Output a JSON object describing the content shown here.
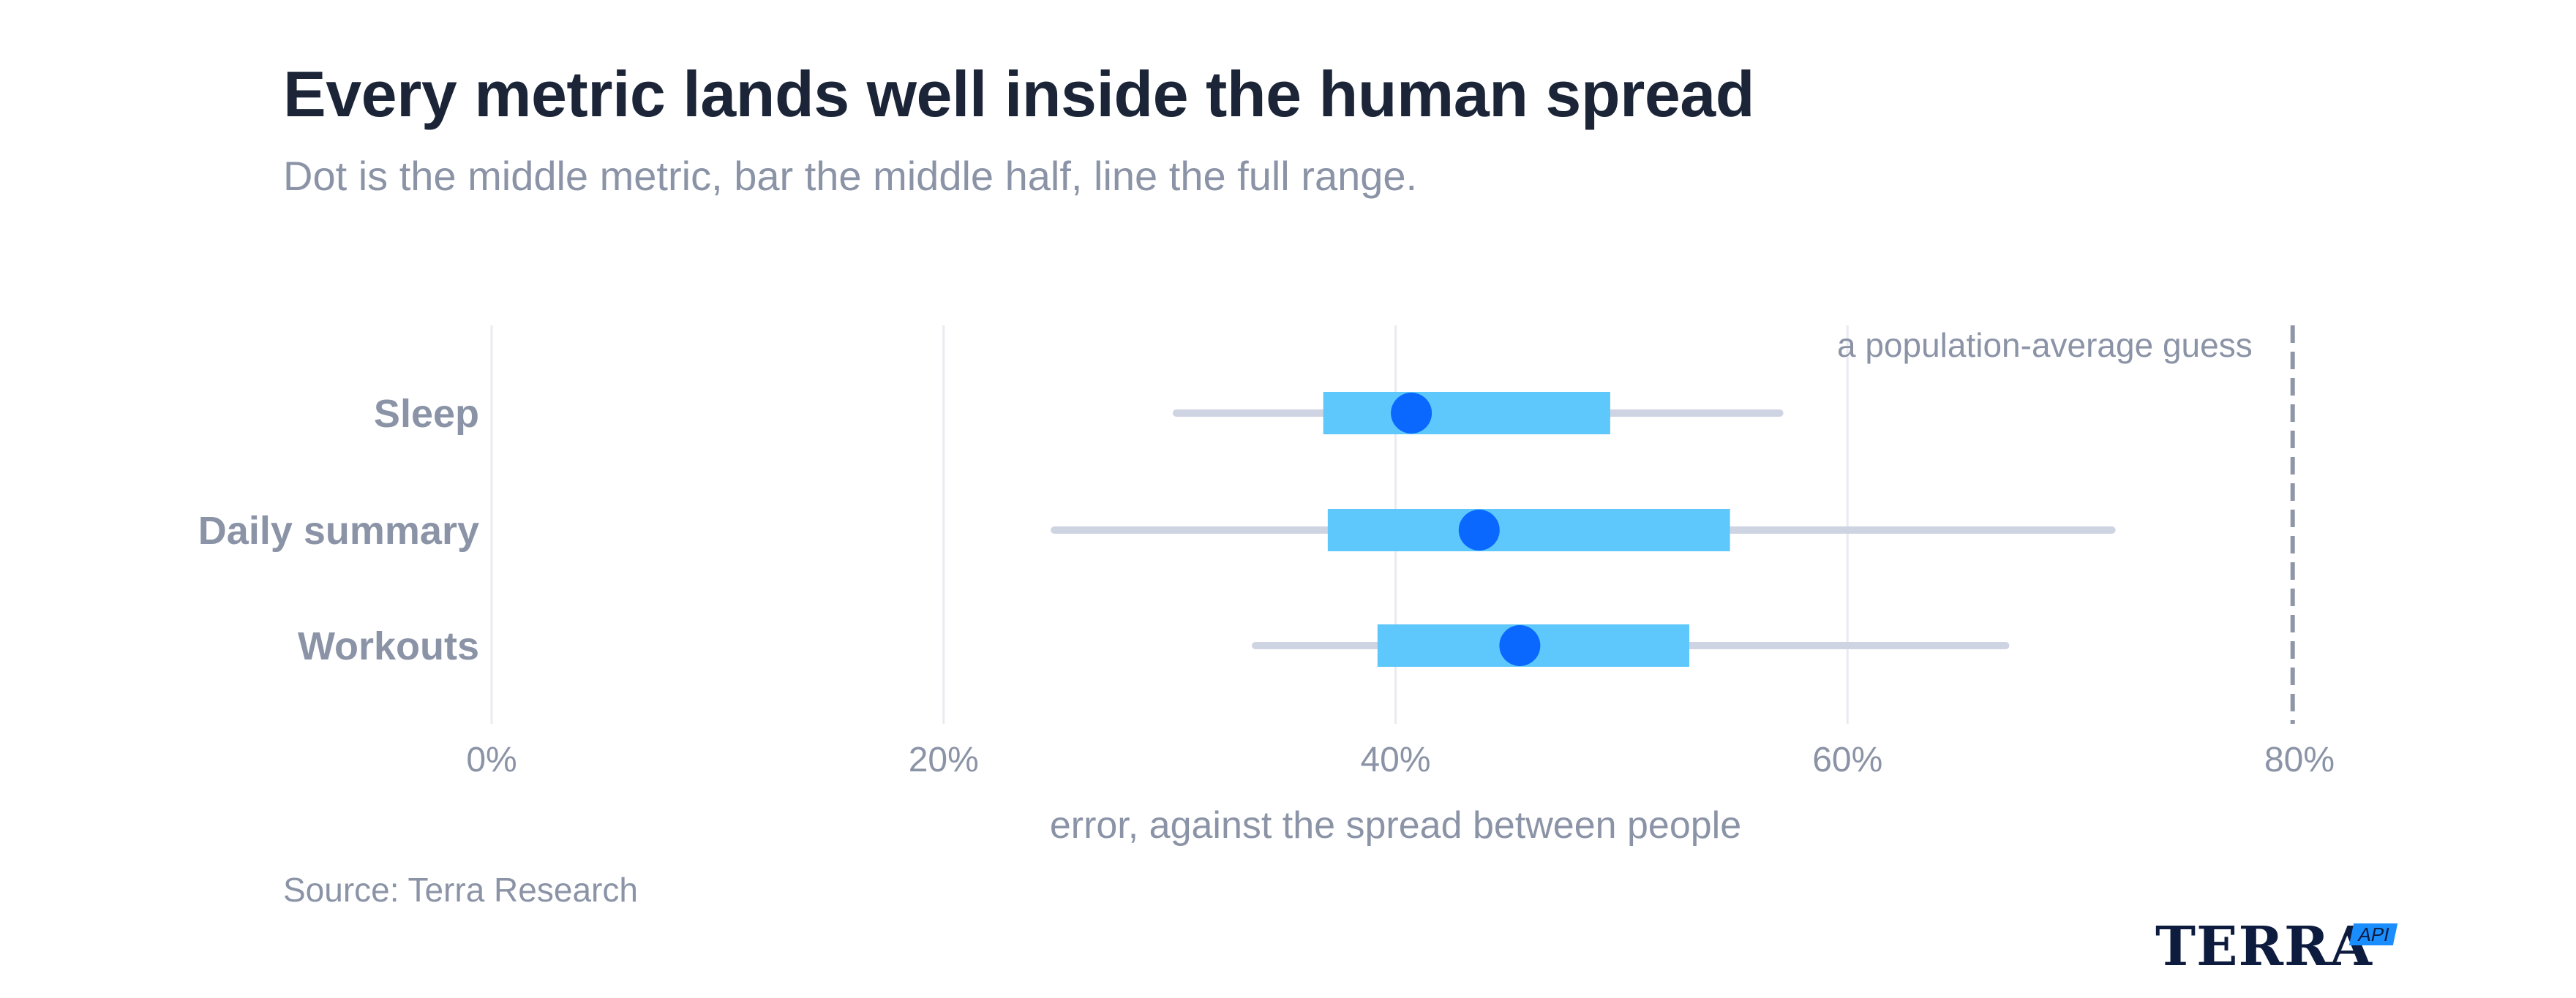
{
  "title": "Every metric lands well inside the human spread",
  "subtitle": "Dot is the middle metric, bar the middle half, line the full range.",
  "source": "Source: Terra Research",
  "logo": {
    "wordmark": "TERRA",
    "badge": "API"
  },
  "colors": {
    "range_line": "#cfd4e2",
    "iqr_bar": "#5ec8fc",
    "median_dot": "#0a68ff",
    "grid": "#e9ebf0",
    "reference_line": "#8f96a8",
    "axis_text": "#8b93a6"
  },
  "chart_data": {
    "type": "range-dot",
    "title": "Every metric lands well inside the human spread",
    "subtitle": "Dot is the middle metric, bar the middle half, line the full range.",
    "xlabel": "error, against the spread between people",
    "ylabel": "",
    "xlim": [
      0,
      80
    ],
    "x_ticks": [
      0,
      20,
      40,
      60,
      80
    ],
    "x_tick_labels": [
      "0%",
      "20%",
      "40%",
      "60%",
      "80%"
    ],
    "grid": true,
    "categories": [
      "Sleep",
      "Daily summary",
      "Workouts"
    ],
    "series": [
      {
        "category": "Sleep",
        "min": 30.3,
        "q1": 36.8,
        "median": 40.7,
        "q3": 49.5,
        "max": 57.0
      },
      {
        "category": "Daily summary",
        "min": 24.9,
        "q1": 37.0,
        "median": 43.7,
        "q3": 54.8,
        "max": 71.7
      },
      {
        "category": "Workouts",
        "min": 33.8,
        "q1": 39.2,
        "median": 45.5,
        "q3": 53.0,
        "max": 67.0
      }
    ],
    "reference": {
      "value": 79.7,
      "label": "a population-average guess"
    }
  }
}
